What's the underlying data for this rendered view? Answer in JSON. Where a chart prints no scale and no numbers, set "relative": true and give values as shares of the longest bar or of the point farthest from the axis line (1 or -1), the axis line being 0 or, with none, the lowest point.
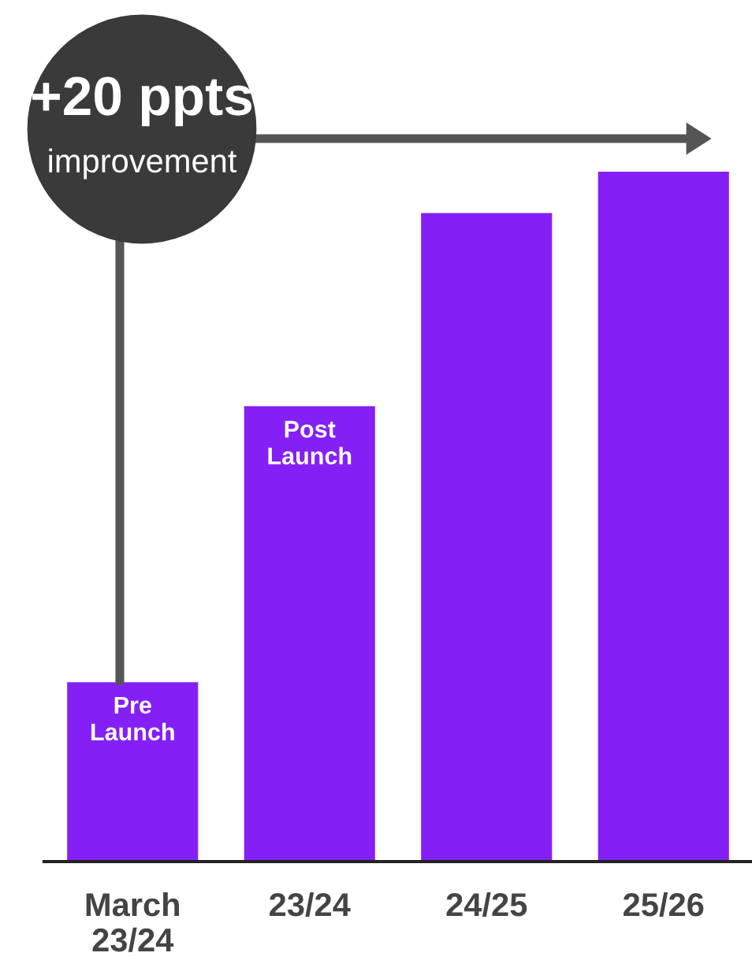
{
  "chart_data": {
    "type": "bar",
    "relative": true,
    "categories": [
      "March\n23/24",
      "23/24",
      "24/25",
      "25/26"
    ],
    "values": [
      0.26,
      0.66,
      0.94,
      1.0
    ],
    "color": "#8420f5",
    "grid": false,
    "annotations": [
      "+20 ppts\nimprovement",
      "Pre\nLaunch",
      "Post\nLaunch"
    ]
  }
}
